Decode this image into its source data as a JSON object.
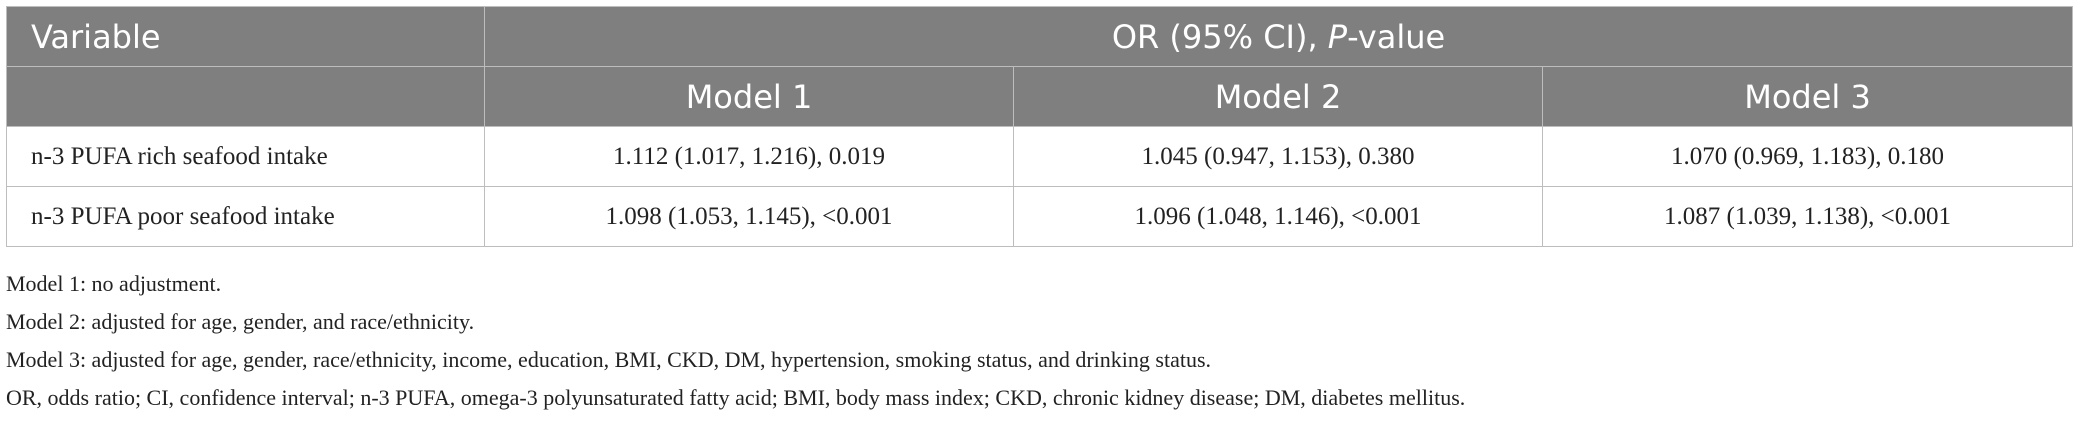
{
  "table": {
    "header": {
      "variable_label": "Variable",
      "or_label_prefix": "OR (95% CI), ",
      "or_label_italic": "P",
      "or_label_suffix": "-value",
      "models": [
        "Model 1",
        "Model 2",
        "Model 3"
      ]
    },
    "rows": [
      {
        "variable": "n-3 PUFA rich seafood intake",
        "values": [
          "1.112 (1.017, 1.216), 0.019",
          "1.045 (0.947, 1.153), 0.380",
          "1.070 (0.969, 1.183), 0.180"
        ]
      },
      {
        "variable": "n-3 PUFA poor seafood intake",
        "values": [
          "1.098 (1.053, 1.145), <0.001",
          "1.096 (1.048, 1.146), <0.001",
          "1.087 (1.039, 1.138), <0.001"
        ]
      }
    ]
  },
  "notes": [
    "Model 1: no adjustment.",
    "Model 2: adjusted for age, gender, and race/ethnicity.",
    "Model 3: adjusted for age, gender, race/ethnicity, income, education, BMI, CKD, DM, hypertension, smoking status, and drinking status.",
    "OR, odds ratio; CI, confidence interval; n-3 PUFA, omega-3 polyunsaturated fatty acid; BMI, body mass index; CKD, chronic kidney disease; DM, diabetes mellitus."
  ],
  "colors": {
    "header_bg": "#7f7f7f",
    "header_text": "#ffffff",
    "border": "#bdbdbd",
    "body_text": "#222222"
  }
}
